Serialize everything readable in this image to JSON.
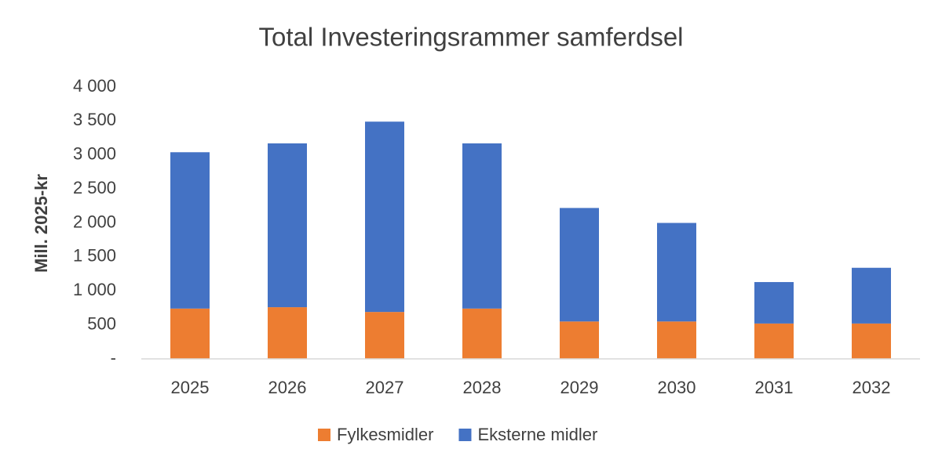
{
  "chart_data": {
    "type": "stacked_bar",
    "title": "Total Investeringsrammer samferdsel",
    "y_label": "Mill. 2025-kr",
    "categories": [
      "2025",
      "2026",
      "2027",
      "2028",
      "2029",
      "2030",
      "2031",
      "2032"
    ],
    "series": [
      {
        "name": "Fylkesmidler",
        "color": "#ed7d31",
        "values": [
          740,
          760,
          690,
          740,
          550,
          550,
          520,
          520
        ]
      },
      {
        "name": "Eksterne midler",
        "color": "#4472c4",
        "values": [
          2300,
          2410,
          2800,
          2430,
          1670,
          1450,
          610,
          820
        ]
      }
    ],
    "ylim": [
      0,
      4000
    ],
    "yticks": [
      {
        "value": 0,
        "label": "-"
      },
      500,
      {
        "value": 1000,
        "label": "1 000"
      },
      {
        "value": 1500,
        "label": "1 500"
      },
      {
        "value": 2000,
        "label": "2 000"
      },
      {
        "value": 2500,
        "label": "2 500"
      },
      {
        "value": 3000,
        "label": "3 000"
      },
      {
        "value": 3500,
        "label": "3 500"
      },
      {
        "value": 4000,
        "label": "4 000"
      }
    ],
    "grid": false,
    "legend": "bottom"
  }
}
